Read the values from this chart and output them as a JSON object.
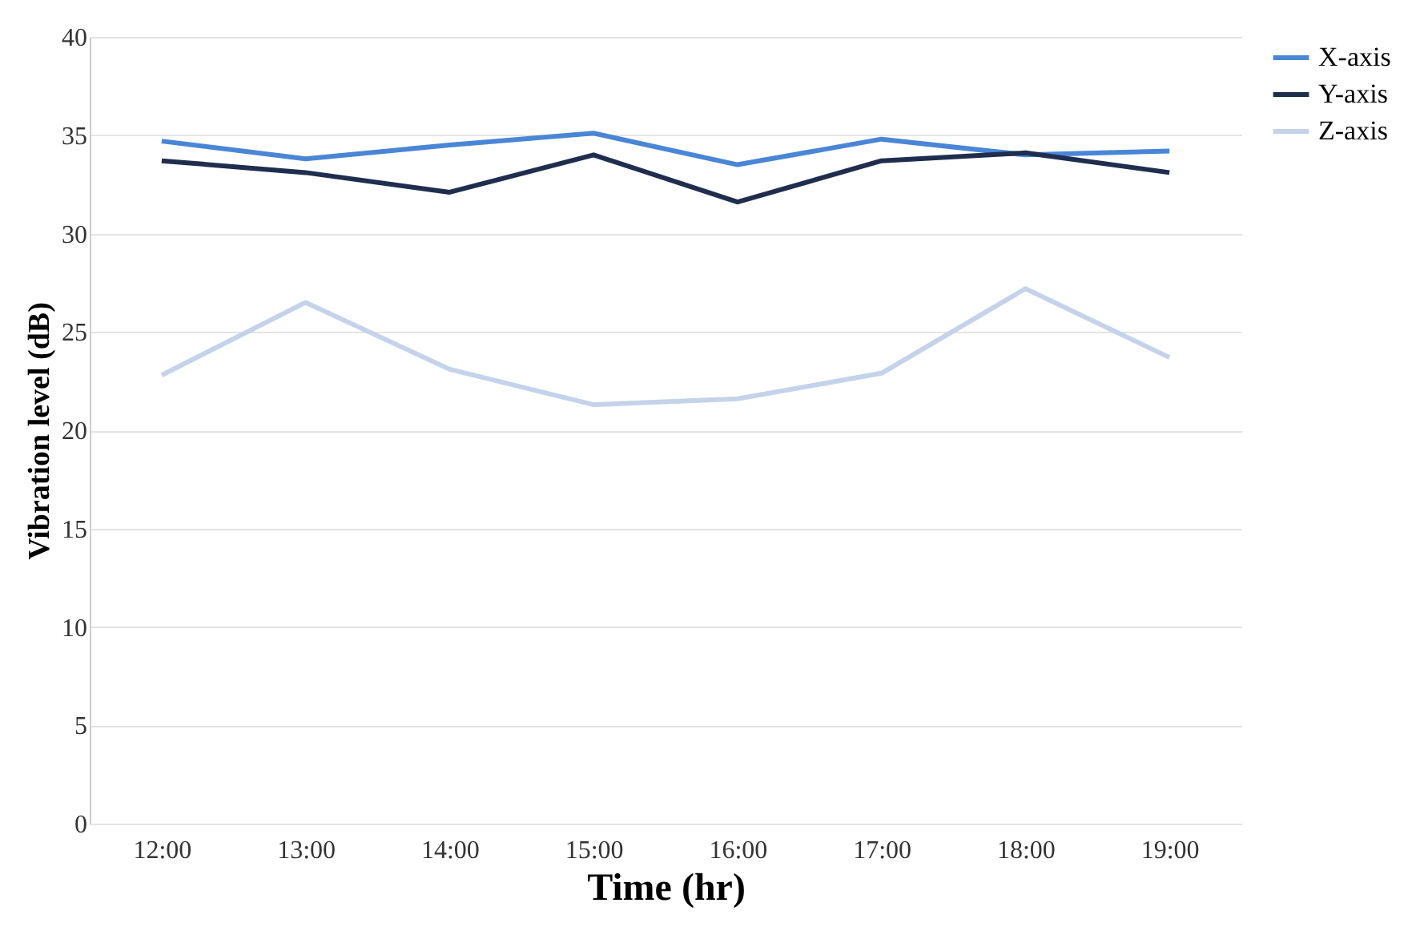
{
  "chart_data": {
    "type": "line",
    "xlabel": "Time (hr)",
    "ylabel": "Vibration level (dB)",
    "categories": [
      "12:00",
      "13:00",
      "14:00",
      "15:00",
      "16:00",
      "17:00",
      "18:00",
      "19:00"
    ],
    "series": [
      {
        "name": "X-axis",
        "color": "#4a86d6",
        "values": [
          34.7,
          33.8,
          34.5,
          35.1,
          33.5,
          34.8,
          34.0,
          34.2
        ]
      },
      {
        "name": "Y-axis",
        "color": "#1f2e4e",
        "values": [
          33.7,
          33.1,
          32.1,
          34.0,
          31.6,
          33.7,
          34.1,
          33.1
        ]
      },
      {
        "name": "Z-axis",
        "color": "#c5d3ea",
        "values": [
          22.8,
          26.5,
          23.1,
          21.3,
          21.6,
          22.9,
          27.2,
          23.7
        ]
      }
    ],
    "ylim": [
      0,
      40
    ],
    "yticks": [
      0,
      5,
      10,
      15,
      20,
      25,
      30,
      35,
      40
    ],
    "grid": "y",
    "legend": "right",
    "marker": "none",
    "line_style": "solid"
  }
}
